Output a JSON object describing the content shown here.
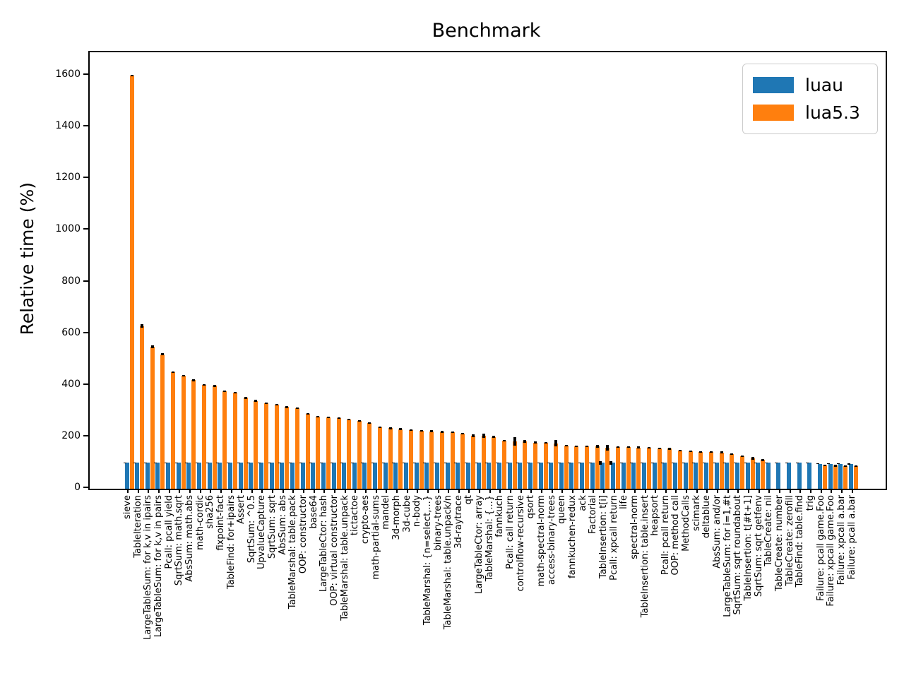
{
  "title": "Benchmark",
  "ylabel": "Relative time (%)",
  "legend": [
    {
      "label": "luau",
      "color": "#1f77b4"
    },
    {
      "label": "lua5.3",
      "color": "#ff7f0e"
    }
  ],
  "colors": {
    "luau": "#1f77b4",
    "lua53": "#ff7f0e",
    "error": "#000000",
    "spine": "#000000"
  },
  "chart_data": {
    "type": "bar",
    "title": "Benchmark",
    "xlabel": "",
    "ylabel": "Relative time (%)",
    "ylim": [
      0,
      1650
    ],
    "yticks": [
      0,
      200,
      400,
      600,
      800,
      1000,
      1200,
      1400,
      1600
    ],
    "grid": false,
    "legend_position": "upper right",
    "categories": [
      "sieve",
      "TableIteration",
      "LargeTableSum: for k,v in ipairs",
      "LargeTableSum: for k,v in pairs",
      "Pcall: pcall yield",
      "SqrtSum: math.sqrt",
      "AbsSum: math.abs",
      "math-cordic",
      "sha256",
      "fixpoint-fact",
      "TableFind: for+ipairs",
      "Assert",
      "SqrtSum: ^0.5",
      "UpvalueCapture",
      "SqrtSum: sqrt",
      "AbsSum: abs",
      "TableMarshal: table.pack",
      "OOP: constructor",
      "base64",
      "LargeTableCtor: hash",
      "OOP: virtual constructor",
      "TableMarshal: table.unpack",
      "tictactoe",
      "crypto-aes",
      "math-partial-sums",
      "mandel",
      "3d-morph",
      "3d-cube",
      "n-body",
      "TableMarshal: {n=select,...}",
      "binary-trees",
      "TableMarshal: table.unpack/n",
      "3d-raytrace",
      "qt",
      "LargeTableCtor: array",
      "TableMarshal: {...}",
      "fannkuch",
      "Pcall: call return",
      "controlflow-recursive",
      "qsort",
      "math-spectral-norm",
      "access-binary-trees",
      "queen",
      "fannkuchen-redux",
      "ack",
      "Factorial",
      "TableInsertion: t[i]",
      "Pcall: xpcall return",
      "life",
      "spectral-norm",
      "TableInsertion: table.insert",
      "heapsort",
      "Pcall: pcall return",
      "OOP: method call",
      "MethodCalls",
      "scimark",
      "deltablue",
      "AbsSum: and/or",
      "LargeTableSum: for i=1,#t",
      "SqrtSum: sqrt roundabout",
      "TableInsertion: t[#t+1]",
      "SqrtSum: sqrt getfenv",
      "TableCreate: nil",
      "TableCreate: number",
      "TableCreate: zerofill",
      "TableFind: table.find",
      "trig",
      "Failure: pcall game.Foo",
      "Failure: xpcall game.Foo",
      "Failure: xpcall a.bar",
      "Failure: pcall a.bar"
    ],
    "series": [
      {
        "name": "luau",
        "color": "#1f77b4",
        "values": [
          100,
          100,
          100,
          100,
          100,
          100,
          100,
          100,
          100,
          100,
          100,
          100,
          100,
          100,
          100,
          100,
          100,
          100,
          100,
          100,
          100,
          100,
          100,
          100,
          100,
          100,
          100,
          100,
          100,
          100,
          100,
          100,
          100,
          100,
          100,
          100,
          100,
          100,
          100,
          100,
          100,
          100,
          100,
          100,
          100,
          100,
          100,
          100,
          100,
          100,
          100,
          100,
          100,
          100,
          100,
          100,
          100,
          100,
          100,
          100,
          100,
          100,
          100,
          100,
          100,
          100,
          100,
          97,
          97,
          97,
          96
        ],
        "errors": [
          2,
          2,
          2,
          2,
          2,
          2,
          2,
          2,
          2,
          2,
          2,
          2,
          2,
          2,
          2,
          2,
          2,
          2,
          2,
          2,
          2,
          2,
          2,
          2,
          2,
          2,
          2,
          2,
          2,
          2,
          2,
          2,
          2,
          2,
          2,
          2,
          2,
          2,
          2,
          2,
          2,
          2,
          2,
          2,
          2,
          2,
          8,
          7,
          2,
          2,
          2,
          2,
          2,
          2,
          2,
          2,
          2,
          2,
          2,
          2,
          2,
          2,
          2,
          2,
          2,
          2,
          2,
          2,
          2,
          2,
          2
        ]
      },
      {
        "name": "lua5.3",
        "color": "#ff7f0e",
        "values": [
          1600,
          630,
          550,
          520,
          452,
          438,
          420,
          402,
          398,
          378,
          372,
          352,
          340,
          332,
          326,
          316,
          312,
          290,
          280,
          277,
          274,
          268,
          262,
          255,
          237,
          234,
          231,
          227,
          225,
          222,
          220,
          218,
          213,
          205,
          204,
          201,
          187,
          183,
          184,
          179,
          177,
          176,
          167,
          164,
          163,
          164,
          159,
          162,
          161,
          160,
          158,
          157,
          155,
          147,
          146,
          143,
          142,
          140,
          134,
          126,
          118,
          112,
          0,
          0,
          0,
          0,
          0,
          90,
          89,
          88,
          87
        ],
        "errors": [
          4,
          6,
          5,
          4,
          3,
          3,
          3,
          3,
          3,
          3,
          3,
          4,
          4,
          3,
          3,
          3,
          3,
          3,
          3,
          3,
          3,
          3,
          3,
          3,
          3,
          4,
          3,
          3,
          3,
          4,
          3,
          3,
          3,
          6,
          8,
          3,
          3,
          16,
          6,
          3,
          3,
          12,
          3,
          3,
          3,
          5,
          10,
          3,
          3,
          3,
          3,
          3,
          4,
          3,
          3,
          3,
          3,
          4,
          4,
          3,
          6,
          4,
          0,
          0,
          0,
          0,
          0,
          3,
          3,
          3,
          3
        ]
      }
    ]
  }
}
